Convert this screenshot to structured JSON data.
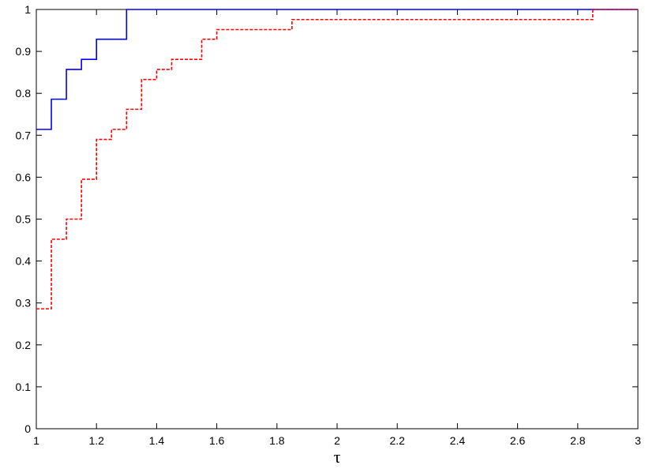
{
  "chart_data": {
    "type": "line",
    "title": "",
    "xlabel": "τ",
    "ylabel": "",
    "xlim": [
      1,
      3
    ],
    "ylim": [
      0,
      1
    ],
    "grid": false,
    "legend": "none",
    "x_ticks": [
      "1",
      "1.2",
      "1.4",
      "1.6",
      "1.8",
      "2",
      "2.2",
      "2.4",
      "2.6",
      "2.8",
      "3"
    ],
    "y_ticks": [
      "0",
      "0.1",
      "0.2",
      "0.3",
      "0.4",
      "0.5",
      "0.6",
      "0.7",
      "0.8",
      "0.9",
      "1"
    ],
    "series": [
      {
        "color": "#0000ff",
        "style": "solid-step",
        "x": [
          1.0,
          1.05,
          1.1,
          1.15,
          1.2,
          1.3,
          3.0
        ],
        "y": [
          0.714,
          0.786,
          0.857,
          0.881,
          0.929,
          1.0,
          1.0
        ]
      },
      {
        "color": "#ff0000",
        "style": "dashed-step",
        "x": [
          1.0,
          1.05,
          1.1,
          1.15,
          1.2,
          1.25,
          1.3,
          1.35,
          1.4,
          1.45,
          1.55,
          1.6,
          1.85,
          2.85,
          3.0
        ],
        "y": [
          0.286,
          0.452,
          0.5,
          0.595,
          0.69,
          0.714,
          0.762,
          0.833,
          0.857,
          0.881,
          0.929,
          0.952,
          0.976,
          1.0,
          1.0
        ]
      }
    ]
  }
}
